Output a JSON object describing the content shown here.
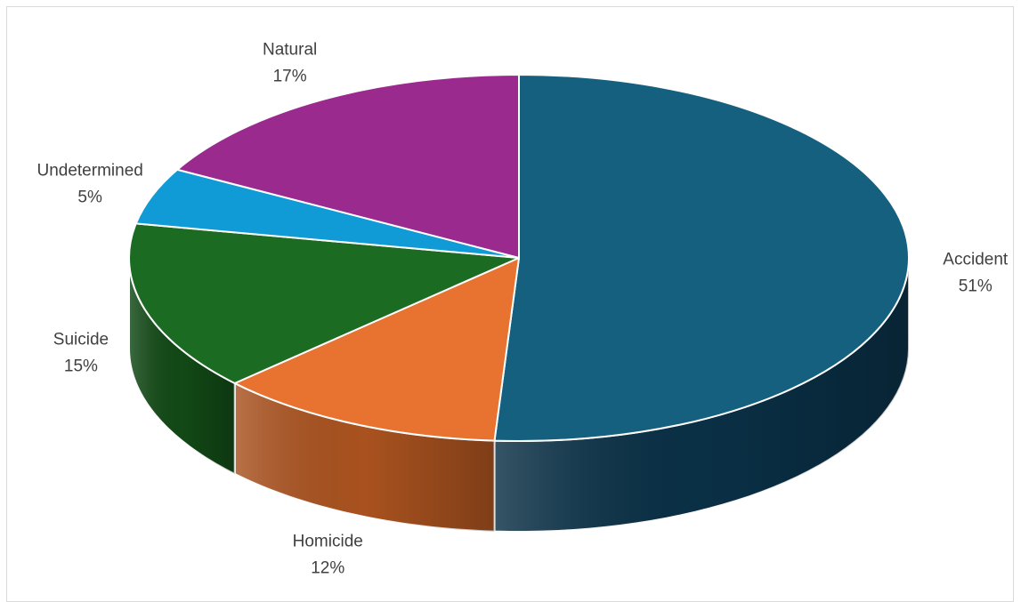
{
  "chart_data": {
    "type": "pie",
    "style": "3d",
    "start_angle_deg": 90,
    "direction": "clockwise",
    "slices": [
      {
        "label": "Accident",
        "value": 51,
        "value_label": "51%",
        "color": "#16607f",
        "side_color": "#0a3046"
      },
      {
        "label": "Homicide",
        "value": 12,
        "value_label": "12%",
        "color": "#e87230",
        "side_color": "#a9521f"
      },
      {
        "label": "Suicide",
        "value": 15,
        "value_label": "15%",
        "color": "#1c6b22",
        "side_color": "#124916"
      },
      {
        "label": "Undetermined",
        "value": 5,
        "value_label": "5%",
        "color": "#119bd6",
        "side_color": "#0b6a94"
      },
      {
        "label": "Natural",
        "value": 17,
        "value_label": "17%",
        "color": "#9b2a8f",
        "side_color": "#6a1d62"
      }
    ],
    "legend": "none",
    "data_labels": "outside"
  }
}
